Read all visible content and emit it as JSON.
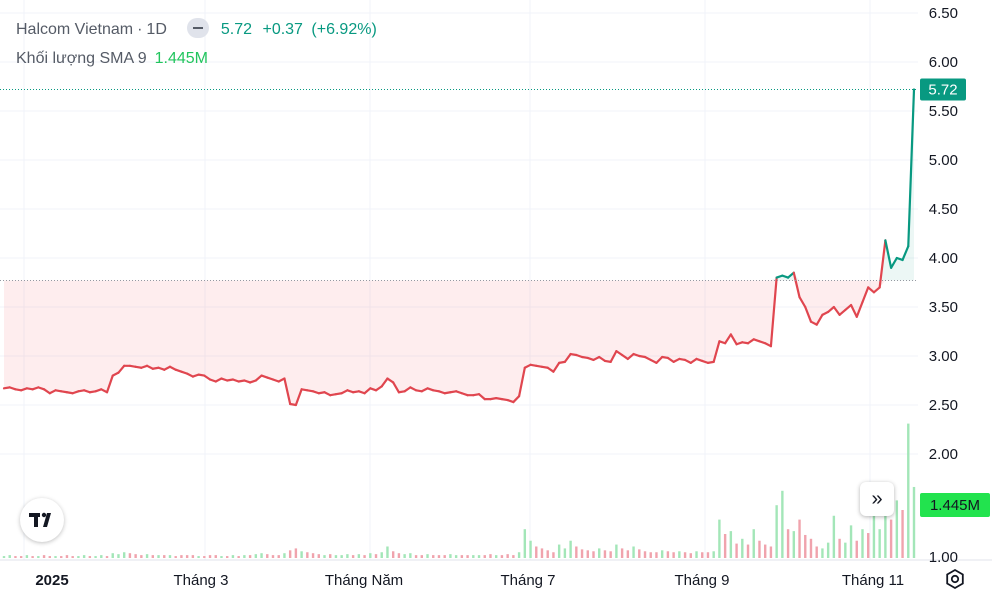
{
  "legend": {
    "symbol": "Halcom Vietnam",
    "separator": "·",
    "interval": "1D",
    "close": "5.72",
    "change": "+0.37",
    "change_pct": "(+6.92%)",
    "volume_label": "Khối lượng SMA 9",
    "volume_value": "1.445M"
  },
  "colors": {
    "up": "#089981",
    "down": "#e0464f",
    "vol_up": "#a3e6b8",
    "vol_down": "#f0a3ad",
    "badge_vol": "#22e34e"
  },
  "icons": [
    "tradingview-logo-icon",
    "double-chevron-right-icon",
    "settings-gear-icon"
  ],
  "chart_data": {
    "type": "area",
    "baseline": 3.77,
    "ylim": [
      1.0,
      6.5
    ],
    "y_ticks": [
      "6.50",
      "6.00",
      "5.50",
      "5.00",
      "4.50",
      "4.00",
      "3.50",
      "3.00",
      "2.50",
      "2.00",
      "1.00"
    ],
    "x_ticks": [
      "2025",
      "Tháng 3",
      "Tháng Năm",
      "Tháng 7",
      "Tháng 9",
      "Tháng 11"
    ],
    "last_price_label": "5.72",
    "volume_badge": "1.445M",
    "series": [
      {
        "values": [
          2.67,
          2.68,
          2.66,
          2.65,
          2.67,
          2.66,
          2.68,
          2.66,
          2.62,
          2.65,
          2.64,
          2.63,
          2.62,
          2.64,
          2.65,
          2.63,
          2.64,
          2.66,
          2.63,
          2.8,
          2.83,
          2.9,
          2.9,
          2.89,
          2.88,
          2.9,
          2.87,
          2.88,
          2.86,
          2.89,
          2.86,
          2.84,
          2.82,
          2.79,
          2.81,
          2.8,
          2.76,
          2.74,
          2.77,
          2.75,
          2.76,
          2.74,
          2.75,
          2.73,
          2.75,
          2.8,
          2.78,
          2.76,
          2.74,
          2.77,
          2.51,
          2.5,
          2.66,
          2.65,
          2.64,
          2.62,
          2.63,
          2.6,
          2.61,
          2.62,
          2.65,
          2.63,
          2.64,
          2.62,
          2.67,
          2.65,
          2.69,
          2.77,
          2.73,
          2.63,
          2.64,
          2.68,
          2.65,
          2.64,
          2.67,
          2.65,
          2.64,
          2.62,
          2.63,
          2.64,
          2.62,
          2.6,
          2.6,
          2.61,
          2.56,
          2.56,
          2.57,
          2.56,
          2.55,
          2.53,
          2.59,
          2.88,
          2.91,
          2.9,
          2.89,
          2.88,
          2.84,
          2.93,
          2.94,
          3.02,
          3.01,
          2.99,
          2.98,
          2.96,
          2.99,
          2.95,
          2.94,
          3.05,
          3.01,
          2.97,
          3.02,
          3.0,
          2.99,
          2.96,
          2.93,
          2.99,
          2.98,
          2.94,
          2.97,
          2.96,
          2.93,
          2.97,
          2.95,
          2.93,
          2.94,
          3.15,
          3.13,
          3.22,
          3.12,
          3.14,
          3.13,
          3.17,
          3.15,
          3.13,
          3.1,
          3.8,
          3.82,
          3.8,
          3.85,
          3.6,
          3.5,
          3.35,
          3.32,
          3.42,
          3.45,
          3.5,
          3.42,
          3.47,
          3.52,
          3.4,
          3.55,
          3.7,
          3.65,
          3.7,
          4.18,
          3.9,
          4.0,
          3.98,
          4.12,
          5.72
        ]
      }
    ],
    "volume": [
      0.02,
      0.03,
      0.02,
      0.02,
      0.03,
      0.02,
      0.02,
      0.03,
      0.02,
      0.02,
      0.02,
      0.03,
      0.02,
      0.02,
      0.03,
      0.02,
      0.02,
      0.03,
      0.02,
      0.05,
      0.04,
      0.06,
      0.05,
      0.04,
      0.03,
      0.04,
      0.03,
      0.03,
      0.03,
      0.03,
      0.02,
      0.03,
      0.03,
      0.03,
      0.02,
      0.02,
      0.03,
      0.03,
      0.02,
      0.02,
      0.03,
      0.02,
      0.03,
      0.03,
      0.04,
      0.05,
      0.04,
      0.03,
      0.03,
      0.05,
      0.08,
      0.1,
      0.07,
      0.06,
      0.05,
      0.04,
      0.03,
      0.04,
      0.03,
      0.03,
      0.04,
      0.03,
      0.04,
      0.03,
      0.05,
      0.04,
      0.06,
      0.12,
      0.07,
      0.05,
      0.04,
      0.05,
      0.03,
      0.03,
      0.04,
      0.03,
      0.03,
      0.03,
      0.04,
      0.03,
      0.03,
      0.03,
      0.03,
      0.03,
      0.03,
      0.04,
      0.03,
      0.03,
      0.04,
      0.03,
      0.06,
      0.3,
      0.18,
      0.12,
      0.1,
      0.08,
      0.06,
      0.14,
      0.1,
      0.18,
      0.12,
      0.09,
      0.08,
      0.07,
      0.1,
      0.08,
      0.07,
      0.14,
      0.1,
      0.08,
      0.12,
      0.09,
      0.07,
      0.06,
      0.06,
      0.08,
      0.07,
      0.06,
      0.07,
      0.06,
      0.05,
      0.07,
      0.06,
      0.06,
      0.07,
      0.4,
      0.25,
      0.28,
      0.15,
      0.2,
      0.14,
      0.3,
      0.18,
      0.14,
      0.12,
      0.55,
      0.7,
      0.3,
      0.28,
      0.4,
      0.24,
      0.2,
      0.12,
      0.1,
      0.16,
      0.44,
      0.2,
      0.16,
      0.34,
      0.18,
      0.3,
      0.26,
      0.5,
      0.3,
      0.66,
      0.4,
      0.6,
      0.5,
      1.4,
      0.74
    ],
    "volume_up": [
      1,
      1,
      0,
      0,
      1,
      0,
      1,
      0,
      0,
      1,
      0,
      0,
      0,
      1,
      1,
      0,
      1,
      1,
      0,
      1,
      1,
      1,
      0,
      0,
      0,
      1,
      0,
      1,
      0,
      1,
      0,
      0,
      0,
      0,
      1,
      0,
      0,
      0,
      1,
      0,
      1,
      0,
      1,
      0,
      1,
      1,
      0,
      0,
      0,
      1,
      0,
      0,
      1,
      0,
      0,
      0,
      1,
      0,
      1,
      1,
      1,
      0,
      1,
      0,
      1,
      0,
      1,
      1,
      0,
      0,
      1,
      1,
      0,
      0,
      1,
      0,
      0,
      0,
      1,
      1,
      0,
      0,
      1,
      1,
      0,
      0,
      1,
      0,
      0,
      0,
      1,
      1,
      1,
      0,
      0,
      0,
      0,
      1,
      1,
      1,
      0,
      0,
      0,
      0,
      1,
      0,
      0,
      1,
      0,
      0,
      1,
      0,
      0,
      0,
      0,
      1,
      0,
      0,
      1,
      0,
      0,
      1,
      0,
      0,
      1,
      1,
      0,
      1,
      0,
      1,
      0,
      1,
      0,
      0,
      0,
      1,
      1,
      0,
      1,
      0,
      0,
      0,
      0,
      1,
      1,
      1,
      0,
      1,
      1,
      0,
      1,
      0,
      1,
      1,
      1,
      0,
      1,
      0,
      1,
      1
    ]
  }
}
